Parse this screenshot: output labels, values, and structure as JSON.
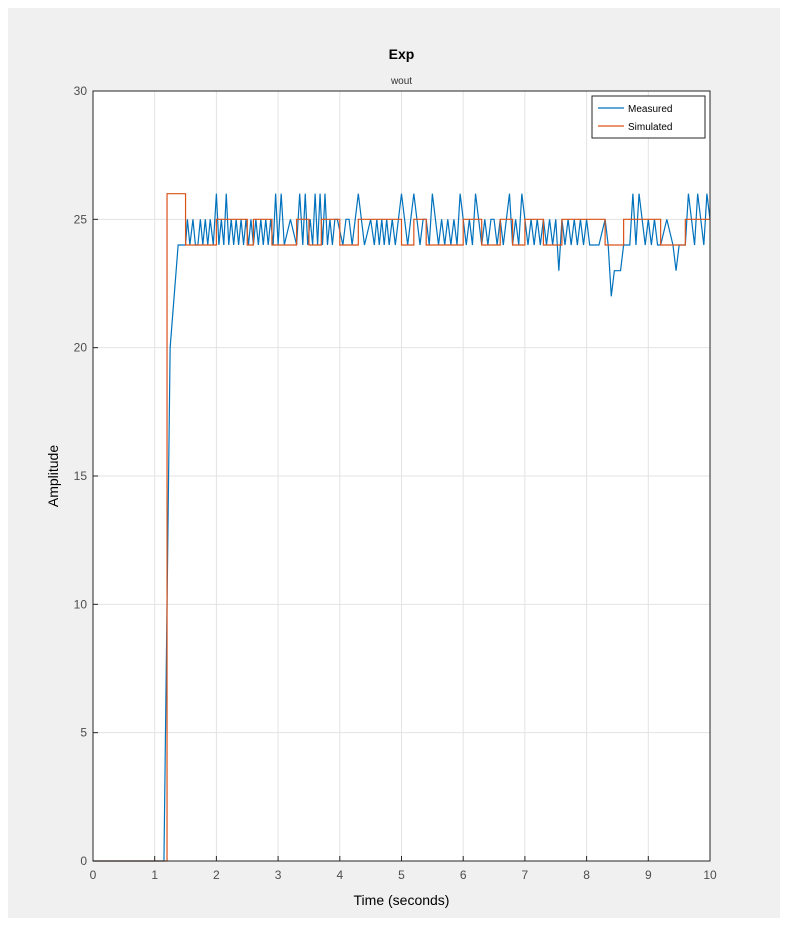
{
  "chart_data": {
    "type": "line",
    "title": "Exp",
    "subtitle": "wout",
    "xlabel": "Time (seconds)",
    "ylabel": "Amplitude",
    "xlim": [
      0,
      10
    ],
    "ylim": [
      0,
      30
    ],
    "xticks": [
      "0",
      "1",
      "2",
      "3",
      "4",
      "5",
      "6",
      "7",
      "8",
      "9",
      "10"
    ],
    "yticks": [
      "0",
      "5",
      "10",
      "15",
      "20",
      "25",
      "30"
    ],
    "grid": true,
    "legend_position": "top-right",
    "series": [
      {
        "name": "Measured",
        "color": "#0072bd",
        "points": [
          [
            0,
            0
          ],
          [
            1.1,
            0
          ],
          [
            1.15,
            0
          ],
          [
            1.25,
            20
          ],
          [
            1.38,
            24
          ],
          [
            1.5,
            24
          ],
          [
            1.53,
            25
          ],
          [
            1.57,
            24
          ],
          [
            1.62,
            25
          ],
          [
            1.66,
            24
          ],
          [
            1.7,
            24
          ],
          [
            1.74,
            25
          ],
          [
            1.78,
            24
          ],
          [
            1.82,
            25
          ],
          [
            1.86,
            24
          ],
          [
            1.9,
            25
          ],
          [
            1.95,
            24
          ],
          [
            2.0,
            26
          ],
          [
            2.04,
            24
          ],
          [
            2.08,
            25
          ],
          [
            2.12,
            24
          ],
          [
            2.16,
            26
          ],
          [
            2.2,
            24
          ],
          [
            2.24,
            25
          ],
          [
            2.28,
            24
          ],
          [
            2.32,
            25
          ],
          [
            2.36,
            24
          ],
          [
            2.4,
            25
          ],
          [
            2.44,
            24
          ],
          [
            2.48,
            25
          ],
          [
            2.52,
            24
          ],
          [
            2.56,
            25
          ],
          [
            2.6,
            24
          ],
          [
            2.64,
            25
          ],
          [
            2.68,
            24
          ],
          [
            2.72,
            25
          ],
          [
            2.76,
            24
          ],
          [
            2.8,
            25
          ],
          [
            2.84,
            24
          ],
          [
            2.88,
            25
          ],
          [
            2.92,
            24
          ],
          [
            2.96,
            26
          ],
          [
            3.0,
            24
          ],
          [
            3.05,
            26
          ],
          [
            3.1,
            24
          ],
          [
            3.2,
            25
          ],
          [
            3.3,
            24
          ],
          [
            3.35,
            26
          ],
          [
            3.4,
            24
          ],
          [
            3.44,
            26
          ],
          [
            3.48,
            24
          ],
          [
            3.52,
            25
          ],
          [
            3.56,
            24
          ],
          [
            3.6,
            26
          ],
          [
            3.64,
            24
          ],
          [
            3.68,
            26
          ],
          [
            3.72,
            24
          ],
          [
            3.76,
            26
          ],
          [
            3.8,
            24
          ],
          [
            3.84,
            25
          ],
          [
            3.88,
            24
          ],
          [
            3.92,
            25
          ],
          [
            3.96,
            25
          ],
          [
            4.05,
            24
          ],
          [
            4.1,
            25
          ],
          [
            4.15,
            25
          ],
          [
            4.2,
            24
          ],
          [
            4.3,
            26
          ],
          [
            4.35,
            25
          ],
          [
            4.4,
            24
          ],
          [
            4.5,
            25
          ],
          [
            4.56,
            24
          ],
          [
            4.6,
            25
          ],
          [
            4.64,
            24
          ],
          [
            4.68,
            25
          ],
          [
            4.72,
            24
          ],
          [
            4.76,
            25
          ],
          [
            4.8,
            24
          ],
          [
            4.85,
            25
          ],
          [
            4.9,
            24
          ],
          [
            4.95,
            25
          ],
          [
            5.0,
            26
          ],
          [
            5.05,
            25
          ],
          [
            5.1,
            24
          ],
          [
            5.15,
            25
          ],
          [
            5.2,
            26
          ],
          [
            5.25,
            25
          ],
          [
            5.3,
            24
          ],
          [
            5.35,
            25
          ],
          [
            5.4,
            25
          ],
          [
            5.45,
            24
          ],
          [
            5.5,
            26
          ],
          [
            5.55,
            25
          ],
          [
            5.6,
            24
          ],
          [
            5.65,
            25
          ],
          [
            5.7,
            24
          ],
          [
            5.75,
            25
          ],
          [
            5.8,
            24
          ],
          [
            5.85,
            25
          ],
          [
            5.9,
            24
          ],
          [
            5.95,
            26
          ],
          [
            6.0,
            25
          ],
          [
            6.05,
            24
          ],
          [
            6.1,
            25
          ],
          [
            6.15,
            24
          ],
          [
            6.2,
            26
          ],
          [
            6.25,
            25
          ],
          [
            6.3,
            24
          ],
          [
            6.35,
            25
          ],
          [
            6.4,
            24
          ],
          [
            6.45,
            25
          ],
          [
            6.5,
            25
          ],
          [
            6.55,
            24
          ],
          [
            6.6,
            25
          ],
          [
            6.65,
            24
          ],
          [
            6.7,
            25
          ],
          [
            6.75,
            26
          ],
          [
            6.8,
            24
          ],
          [
            6.85,
            25
          ],
          [
            6.9,
            24
          ],
          [
            6.95,
            26
          ],
          [
            7.0,
            25
          ],
          [
            7.05,
            24
          ],
          [
            7.1,
            25
          ],
          [
            7.15,
            24
          ],
          [
            7.2,
            25
          ],
          [
            7.25,
            24
          ],
          [
            7.3,
            25
          ],
          [
            7.35,
            24
          ],
          [
            7.4,
            25
          ],
          [
            7.45,
            24
          ],
          [
            7.5,
            25
          ],
          [
            7.55,
            23
          ],
          [
            7.6,
            25
          ],
          [
            7.65,
            24
          ],
          [
            7.7,
            25
          ],
          [
            7.75,
            24
          ],
          [
            7.8,
            25
          ],
          [
            7.85,
            24
          ],
          [
            7.9,
            25
          ],
          [
            7.95,
            24
          ],
          [
            8.0,
            25
          ],
          [
            8.05,
            24
          ],
          [
            8.1,
            24
          ],
          [
            8.2,
            24
          ],
          [
            8.3,
            25
          ],
          [
            8.35,
            24
          ],
          [
            8.4,
            22
          ],
          [
            8.45,
            23
          ],
          [
            8.55,
            23
          ],
          [
            8.6,
            24
          ],
          [
            8.7,
            24
          ],
          [
            8.75,
            26
          ],
          [
            8.8,
            24
          ],
          [
            8.85,
            26
          ],
          [
            8.9,
            25
          ],
          [
            8.95,
            24
          ],
          [
            9.0,
            25
          ],
          [
            9.05,
            24
          ],
          [
            9.1,
            25
          ],
          [
            9.15,
            24
          ],
          [
            9.2,
            24
          ],
          [
            9.3,
            25
          ],
          [
            9.4,
            24
          ],
          [
            9.45,
            23
          ],
          [
            9.5,
            24
          ],
          [
            9.55,
            24
          ],
          [
            9.6,
            24
          ],
          [
            9.65,
            26
          ],
          [
            9.7,
            25
          ],
          [
            9.75,
            24
          ],
          [
            9.8,
            26
          ],
          [
            9.85,
            25
          ],
          [
            9.9,
            24
          ],
          [
            9.95,
            26
          ],
          [
            10.0,
            25
          ]
        ]
      },
      {
        "name": "Simulated",
        "color": "#d95319",
        "points": [
          [
            0,
            0
          ],
          [
            1.2,
            0
          ],
          [
            1.2,
            26
          ],
          [
            1.5,
            26
          ],
          [
            1.5,
            24
          ],
          [
            2.0,
            24
          ],
          [
            2.0,
            25
          ],
          [
            2.5,
            25
          ],
          [
            2.5,
            24
          ],
          [
            2.6,
            24
          ],
          [
            2.6,
            25
          ],
          [
            2.9,
            25
          ],
          [
            2.9,
            24
          ],
          [
            3.3,
            24
          ],
          [
            3.3,
            25
          ],
          [
            3.5,
            25
          ],
          [
            3.5,
            24
          ],
          [
            3.7,
            24
          ],
          [
            3.7,
            25
          ],
          [
            4.0,
            25
          ],
          [
            4.0,
            24
          ],
          [
            4.3,
            24
          ],
          [
            4.3,
            25
          ],
          [
            5.0,
            25
          ],
          [
            5.0,
            24
          ],
          [
            5.2,
            24
          ],
          [
            5.2,
            25
          ],
          [
            5.4,
            25
          ],
          [
            5.4,
            24
          ],
          [
            6.0,
            24
          ],
          [
            6.0,
            25
          ],
          [
            6.3,
            25
          ],
          [
            6.3,
            24
          ],
          [
            6.6,
            24
          ],
          [
            6.6,
            25
          ],
          [
            6.8,
            25
          ],
          [
            6.8,
            24
          ],
          [
            7.0,
            24
          ],
          [
            7.0,
            25
          ],
          [
            7.3,
            25
          ],
          [
            7.3,
            24
          ],
          [
            7.6,
            24
          ],
          [
            7.6,
            25
          ],
          [
            8.3,
            25
          ],
          [
            8.3,
            24
          ],
          [
            8.6,
            24
          ],
          [
            8.6,
            25
          ],
          [
            9.2,
            25
          ],
          [
            9.2,
            24
          ],
          [
            9.6,
            24
          ],
          [
            9.6,
            25
          ],
          [
            10.0,
            25
          ]
        ]
      }
    ]
  }
}
